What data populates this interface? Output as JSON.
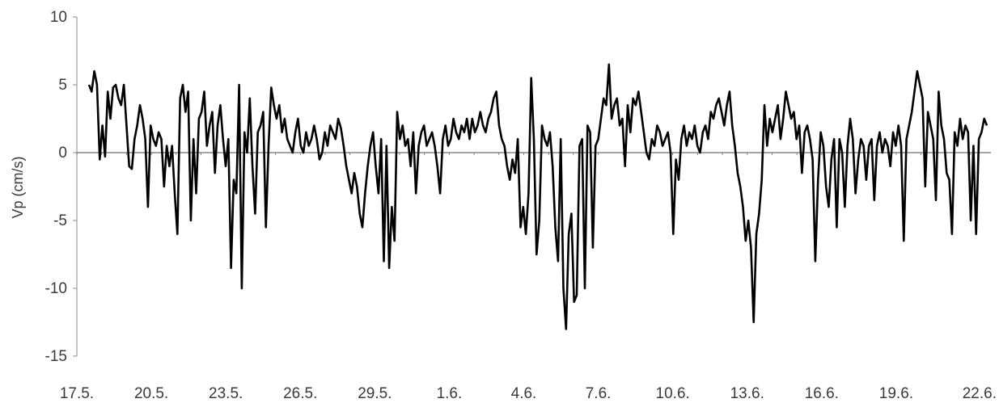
{
  "chart_data": {
    "type": "line",
    "title": "",
    "xlabel": "",
    "ylabel": "Vp (cm/s)",
    "ylim": [
      -15,
      10
    ],
    "yticks": [
      10,
      5,
      0,
      -5,
      -10,
      -15
    ],
    "ytick_labels": [
      "10",
      "5",
      "0",
      "-5",
      "-10",
      "-15"
    ],
    "xlim": [
      "17.5.",
      "22.6."
    ],
    "xtick_labels": [
      "17.5.",
      "20.5.",
      "23.5.",
      "26.5.",
      "29.5.",
      "1.6.",
      "4.6.",
      "7.6.",
      "10.6.",
      "13.6.",
      "16.6.",
      "19.6.",
      "22.6."
    ],
    "grid": false,
    "legend": "none",
    "line_color": "#000000",
    "x_unit": "days from 17.5. (one x value per 0.5 day)",
    "series": [
      {
        "values": [
          5.0,
          4.5,
          6.0,
          5.0,
          -0.5,
          2.0,
          -0.3,
          4.5,
          2.5,
          4.8,
          5.0,
          4.0,
          3.5,
          5.0,
          2.0,
          -1.0,
          -1.2,
          1.0,
          2.0,
          3.5,
          2.5,
          1.0,
          -4.0,
          2.0,
          1.0,
          0.5,
          1.5,
          1.0,
          -2.5,
          0.5,
          -1.0,
          0.5,
          -3.0,
          -6.0,
          4.0,
          5.0,
          3.0,
          4.5,
          -5.0,
          1.0,
          -3.0,
          2.5,
          3.0,
          4.5,
          0.5,
          2.0,
          3.0,
          -1.5,
          2.0,
          3.5,
          1.0,
          -1.0,
          1.0,
          -8.5,
          -2.0,
          -3.0,
          5.0,
          -10.0,
          1.5,
          0.0,
          4.0,
          -1.0,
          -4.5,
          1.5,
          2.0,
          3.0,
          -5.5,
          0.5,
          4.8,
          3.5,
          2.5,
          3.5,
          1.5,
          2.5,
          1.0,
          0.5,
          0.0,
          1.5,
          2.5,
          0.5,
          0.0,
          1.5,
          0.5,
          1.0,
          2.0,
          1.0,
          -0.5,
          0.0,
          1.5,
          0.5,
          2.0,
          1.5,
          1.0,
          2.5,
          1.8,
          0.5,
          -1.0,
          -2.0,
          -3.0,
          -1.5,
          -2.5,
          -4.5,
          -5.5,
          -3.0,
          -1.0,
          0.5,
          1.5,
          -1.0,
          -3.0,
          1.0,
          -8.0,
          0.5,
          -8.5,
          -4.0,
          -6.5,
          3.0,
          1.0,
          2.0,
          0.5,
          1.0,
          -1.0,
          1.5,
          -3.0,
          0.5,
          1.5,
          2.0,
          0.5,
          1.0,
          1.5,
          0.5,
          -1.0,
          -3.0,
          1.0,
          2.0,
          0.5,
          1.0,
          2.5,
          1.5,
          1.0,
          2.0,
          1.5,
          2.5,
          1.0,
          2.5,
          1.5,
          2.0,
          3.0,
          2.0,
          1.5,
          2.5,
          3.0,
          4.0,
          4.5,
          2.0,
          1.0,
          0.5,
          -1.0,
          -2.0,
          -0.5,
          -1.5,
          1.0,
          -5.5,
          -4.0,
          -6.0,
          -3.0,
          5.5,
          1.0,
          -7.5,
          -5.0,
          2.0,
          1.0,
          0.5,
          1.5,
          -1.0,
          -5.5,
          -8.0,
          1.0,
          -10.0,
          -13.0,
          -6.0,
          -4.5,
          -11.0,
          -10.5,
          0.5,
          1.0,
          -10.0,
          2.0,
          1.5,
          -7.0,
          0.5,
          1.0,
          2.5,
          4.0,
          3.5,
          6.5,
          2.5,
          3.5,
          4.0,
          2.0,
          2.5,
          -1.0,
          3.5,
          1.5,
          4.0,
          3.5,
          4.5,
          3.0,
          1.5,
          0.0,
          -0.5,
          1.0,
          0.5,
          2.0,
          1.5,
          0.5,
          1.0,
          1.5,
          0.0,
          -6.0,
          -0.5,
          -2.0,
          1.0,
          2.0,
          0.5,
          1.5,
          1.0,
          2.0,
          0.5,
          0.0,
          1.5,
          2.0,
          1.0,
          3.0,
          2.5,
          3.5,
          4.0,
          3.0,
          2.0,
          3.5,
          4.5,
          2.0,
          0.5,
          -1.5,
          -2.5,
          -4.0,
          -6.5,
          -5.0,
          -7.0,
          -12.5,
          -6.0,
          -4.5,
          -2.0,
          3.5,
          0.5,
          2.5,
          1.5,
          2.5,
          3.5,
          1.0,
          2.5,
          4.5,
          3.5,
          2.5,
          3.0,
          1.0,
          2.0,
          -1.5,
          1.5,
          2.0,
          1.0,
          -0.5,
          -8.0,
          -2.0,
          1.5,
          0.5,
          -2.5,
          -4.0,
          -0.5,
          1.0,
          -5.5,
          1.0,
          0.0,
          -4.0,
          0.5,
          2.5,
          1.0,
          -3.0,
          -0.5,
          1.0,
          0.5,
          -2.0,
          0.5,
          1.0,
          -3.5,
          0.5,
          1.5,
          0.0,
          1.0,
          0.5,
          -1.0,
          1.5,
          0.5,
          2.0,
          0.5,
          -6.5,
          1.0,
          2.0,
          3.0,
          4.5,
          6.0,
          5.0,
          4.0,
          -2.5,
          3.0,
          2.0,
          1.0,
          -3.5,
          4.5,
          2.0,
          1.0,
          -1.5,
          -2.0,
          -6.0,
          1.5,
          0.5,
          2.5,
          1.0,
          2.0,
          1.5,
          -5.0,
          0.5,
          -6.0,
          1.0,
          1.5,
          2.5,
          2.0
        ]
      }
    ]
  }
}
